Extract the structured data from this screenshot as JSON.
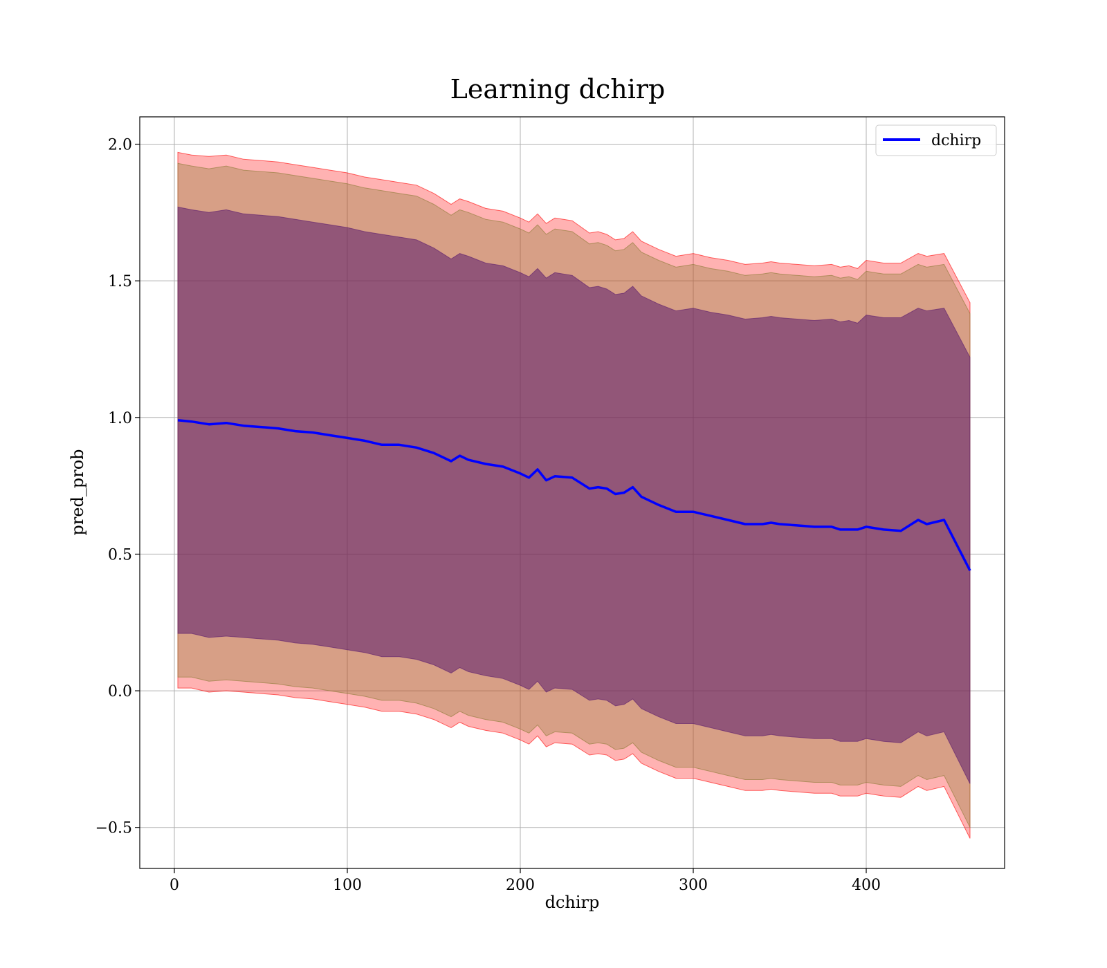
{
  "chart_data": {
    "type": "line",
    "title": "Learning dchirp",
    "xlabel": "dchirp",
    "ylabel": "pred_prob",
    "xlim": [
      -20,
      480
    ],
    "ylim": [
      -0.65,
      2.1
    ],
    "xticks": [
      0,
      100,
      200,
      300,
      400
    ],
    "yticks": [
      -0.5,
      0.0,
      0.5,
      1.0,
      1.5,
      2.0
    ],
    "xtick_labels": [
      "0",
      "100",
      "200",
      "300",
      "400"
    ],
    "ytick_labels": [
      "−0.5",
      "0.0",
      "0.5",
      "1.0",
      "1.5",
      "2.0"
    ],
    "grid": true,
    "legend_position": "top-right",
    "series": [
      {
        "name": "dchirp",
        "color": "#0000ff",
        "x": [
          2,
          10,
          20,
          30,
          40,
          50,
          60,
          70,
          80,
          90,
          100,
          110,
          120,
          130,
          140,
          150,
          160,
          165,
          170,
          180,
          190,
          200,
          205,
          210,
          215,
          220,
          230,
          240,
          245,
          250,
          255,
          260,
          265,
          270,
          280,
          290,
          300,
          310,
          320,
          330,
          340,
          345,
          350,
          360,
          370,
          380,
          385,
          390,
          395,
          400,
          410,
          420,
          430,
          435,
          445,
          460
        ],
        "y": [
          0.99,
          0.985,
          0.975,
          0.98,
          0.97,
          0.965,
          0.96,
          0.95,
          0.945,
          0.935,
          0.925,
          0.915,
          0.9,
          0.9,
          0.89,
          0.87,
          0.84,
          0.86,
          0.845,
          0.83,
          0.82,
          0.795,
          0.78,
          0.81,
          0.77,
          0.785,
          0.78,
          0.74,
          0.745,
          0.74,
          0.72,
          0.725,
          0.745,
          0.71,
          0.68,
          0.655,
          0.655,
          0.64,
          0.625,
          0.61,
          0.61,
          0.615,
          0.61,
          0.605,
          0.6,
          0.6,
          0.59,
          0.59,
          0.59,
          0.6,
          0.59,
          0.585,
          0.625,
          0.61,
          0.625,
          0.44
        ]
      }
    ],
    "bands": [
      {
        "color": "#ff0000",
        "opacity": 0.3,
        "upper": [
          1.97,
          1.96,
          1.955,
          1.96,
          1.945,
          1.94,
          1.935,
          1.925,
          1.915,
          1.905,
          1.895,
          1.88,
          1.87,
          1.86,
          1.85,
          1.82,
          1.78,
          1.8,
          1.79,
          1.765,
          1.755,
          1.73,
          1.715,
          1.745,
          1.71,
          1.73,
          1.72,
          1.675,
          1.68,
          1.67,
          1.65,
          1.655,
          1.68,
          1.645,
          1.615,
          1.59,
          1.6,
          1.585,
          1.575,
          1.56,
          1.565,
          1.57,
          1.565,
          1.56,
          1.555,
          1.56,
          1.55,
          1.555,
          1.545,
          1.575,
          1.565,
          1.565,
          1.6,
          1.59,
          1.6,
          1.42
        ],
        "lower": [
          0.01,
          0.01,
          -0.005,
          0.0,
          -0.005,
          -0.01,
          -0.015,
          -0.025,
          -0.03,
          -0.04,
          -0.05,
          -0.06,
          -0.075,
          -0.075,
          -0.085,
          -0.105,
          -0.135,
          -0.115,
          -0.13,
          -0.145,
          -0.155,
          -0.18,
          -0.195,
          -0.165,
          -0.205,
          -0.19,
          -0.195,
          -0.235,
          -0.23,
          -0.235,
          -0.255,
          -0.25,
          -0.23,
          -0.265,
          -0.295,
          -0.32,
          -0.32,
          -0.335,
          -0.35,
          -0.365,
          -0.365,
          -0.36,
          -0.365,
          -0.37,
          -0.375,
          -0.375,
          -0.385,
          -0.385,
          -0.385,
          -0.375,
          -0.385,
          -0.39,
          -0.35,
          -0.365,
          -0.35,
          -0.54
        ]
      },
      {
        "color": "#8b7a33",
        "opacity": 0.35,
        "upper": [
          1.93,
          1.92,
          1.91,
          1.92,
          1.905,
          1.9,
          1.895,
          1.885,
          1.875,
          1.865,
          1.855,
          1.84,
          1.83,
          1.82,
          1.81,
          1.78,
          1.74,
          1.76,
          1.75,
          1.725,
          1.715,
          1.69,
          1.675,
          1.705,
          1.67,
          1.69,
          1.68,
          1.635,
          1.64,
          1.63,
          1.61,
          1.615,
          1.64,
          1.605,
          1.575,
          1.55,
          1.56,
          1.545,
          1.535,
          1.52,
          1.525,
          1.53,
          1.525,
          1.52,
          1.515,
          1.52,
          1.51,
          1.515,
          1.505,
          1.535,
          1.525,
          1.525,
          1.56,
          1.55,
          1.56,
          1.38
        ],
        "lower": [
          0.05,
          0.05,
          0.035,
          0.04,
          0.035,
          0.03,
          0.025,
          0.015,
          0.01,
          0.0,
          -0.01,
          -0.02,
          -0.035,
          -0.035,
          -0.045,
          -0.065,
          -0.095,
          -0.075,
          -0.09,
          -0.105,
          -0.115,
          -0.14,
          -0.155,
          -0.125,
          -0.165,
          -0.15,
          -0.155,
          -0.195,
          -0.19,
          -0.195,
          -0.215,
          -0.21,
          -0.19,
          -0.225,
          -0.255,
          -0.28,
          -0.28,
          -0.295,
          -0.31,
          -0.325,
          -0.325,
          -0.32,
          -0.325,
          -0.33,
          -0.335,
          -0.335,
          -0.345,
          -0.345,
          -0.345,
          -0.335,
          -0.345,
          -0.35,
          -0.31,
          -0.325,
          -0.31,
          -0.5
        ]
      },
      {
        "color": "#5a1a6e",
        "opacity": 0.55,
        "upper": [
          1.77,
          1.76,
          1.75,
          1.76,
          1.745,
          1.74,
          1.735,
          1.725,
          1.715,
          1.705,
          1.695,
          1.68,
          1.67,
          1.66,
          1.65,
          1.62,
          1.58,
          1.6,
          1.59,
          1.565,
          1.555,
          1.53,
          1.515,
          1.545,
          1.51,
          1.53,
          1.52,
          1.475,
          1.48,
          1.47,
          1.45,
          1.455,
          1.48,
          1.445,
          1.415,
          1.39,
          1.4,
          1.385,
          1.375,
          1.36,
          1.365,
          1.37,
          1.365,
          1.36,
          1.355,
          1.36,
          1.35,
          1.355,
          1.345,
          1.375,
          1.365,
          1.365,
          1.4,
          1.39,
          1.4,
          1.22
        ],
        "lower": [
          0.21,
          0.21,
          0.195,
          0.2,
          0.195,
          0.19,
          0.185,
          0.175,
          0.17,
          0.16,
          0.15,
          0.14,
          0.125,
          0.125,
          0.115,
          0.095,
          0.065,
          0.085,
          0.07,
          0.055,
          0.045,
          0.02,
          0.005,
          0.035,
          -0.005,
          0.01,
          0.005,
          -0.035,
          -0.03,
          -0.035,
          -0.055,
          -0.05,
          -0.03,
          -0.065,
          -0.095,
          -0.12,
          -0.12,
          -0.135,
          -0.15,
          -0.165,
          -0.165,
          -0.16,
          -0.165,
          -0.17,
          -0.175,
          -0.175,
          -0.185,
          -0.185,
          -0.185,
          -0.175,
          -0.185,
          -0.19,
          -0.15,
          -0.165,
          -0.15,
          -0.34
        ]
      }
    ]
  }
}
